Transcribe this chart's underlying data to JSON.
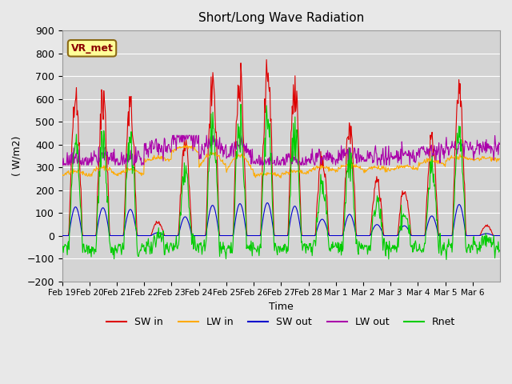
{
  "title": "Short/Long Wave Radiation",
  "xlabel": "Time",
  "ylabel": "( W/m2)",
  "ylim": [
    -200,
    900
  ],
  "n_days": 16,
  "tick_labels": [
    "Feb 19",
    "Feb 20",
    "Feb 21",
    "Feb 22",
    "Feb 23",
    "Feb 24",
    "Feb 25",
    "Feb 26",
    "Feb 27",
    "Feb 28",
    "Mar 1",
    "Mar 2",
    "Mar 3",
    "Mar 4",
    "Mar 5",
    "Mar 6"
  ],
  "station_label": "VR_met",
  "bg_color": "#e8e8e8",
  "plot_bg_color": "#d4d4d4",
  "grid_color": "#ffffff",
  "colors": {
    "SW_in": "#dd0000",
    "LW_in": "#ffaa00",
    "SW_out": "#0000cc",
    "LW_out": "#aa00aa",
    "Rnet": "#00cc00"
  },
  "legend_labels": [
    "SW in",
    "LW in",
    "SW out",
    "LW out",
    "Rnet"
  ],
  "sw_peaks": [
    700,
    680,
    640,
    70,
    460,
    740,
    780,
    800,
    720,
    400,
    520,
    270,
    240,
    480,
    760,
    50
  ],
  "lw_peak": [
    280,
    300,
    290,
    340,
    390,
    360,
    350,
    270,
    280,
    300,
    310,
    300,
    305,
    330,
    345,
    340
  ],
  "lw_night": [
    265,
    265,
    265,
    330,
    370,
    300,
    280,
    265,
    270,
    285,
    285,
    280,
    290,
    310,
    330,
    335
  ]
}
